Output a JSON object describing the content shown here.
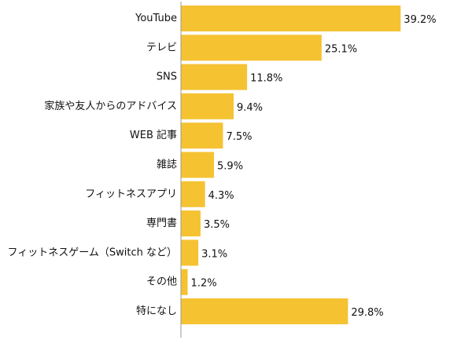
{
  "chart_data": {
    "type": "bar",
    "orientation": "horizontal",
    "categories": [
      "YouTube",
      "テレビ",
      "SNS",
      "家族や友人からのアドバイス",
      "WEB 記事",
      "雑誌",
      "フィットネスアプリ",
      "専門書",
      "フィットネスゲーム（Switch など）",
      "その他",
      "特になし"
    ],
    "values": [
      39.2,
      25.1,
      11.8,
      9.4,
      7.5,
      5.9,
      4.3,
      3.5,
      3.1,
      1.2,
      29.8
    ],
    "value_labels": [
      "39.2%",
      "25.1%",
      "11.8%",
      "9.4%",
      "7.5%",
      "5.9%",
      "4.3%",
      "3.5%",
      "3.1%",
      "1.2%",
      "29.8%"
    ],
    "bar_color": "#f5c232",
    "axis_color": "#999999",
    "xlim": [
      0,
      40
    ],
    "grid": false,
    "legend": "none",
    "title": "",
    "xlabel": "",
    "ylabel": ""
  }
}
